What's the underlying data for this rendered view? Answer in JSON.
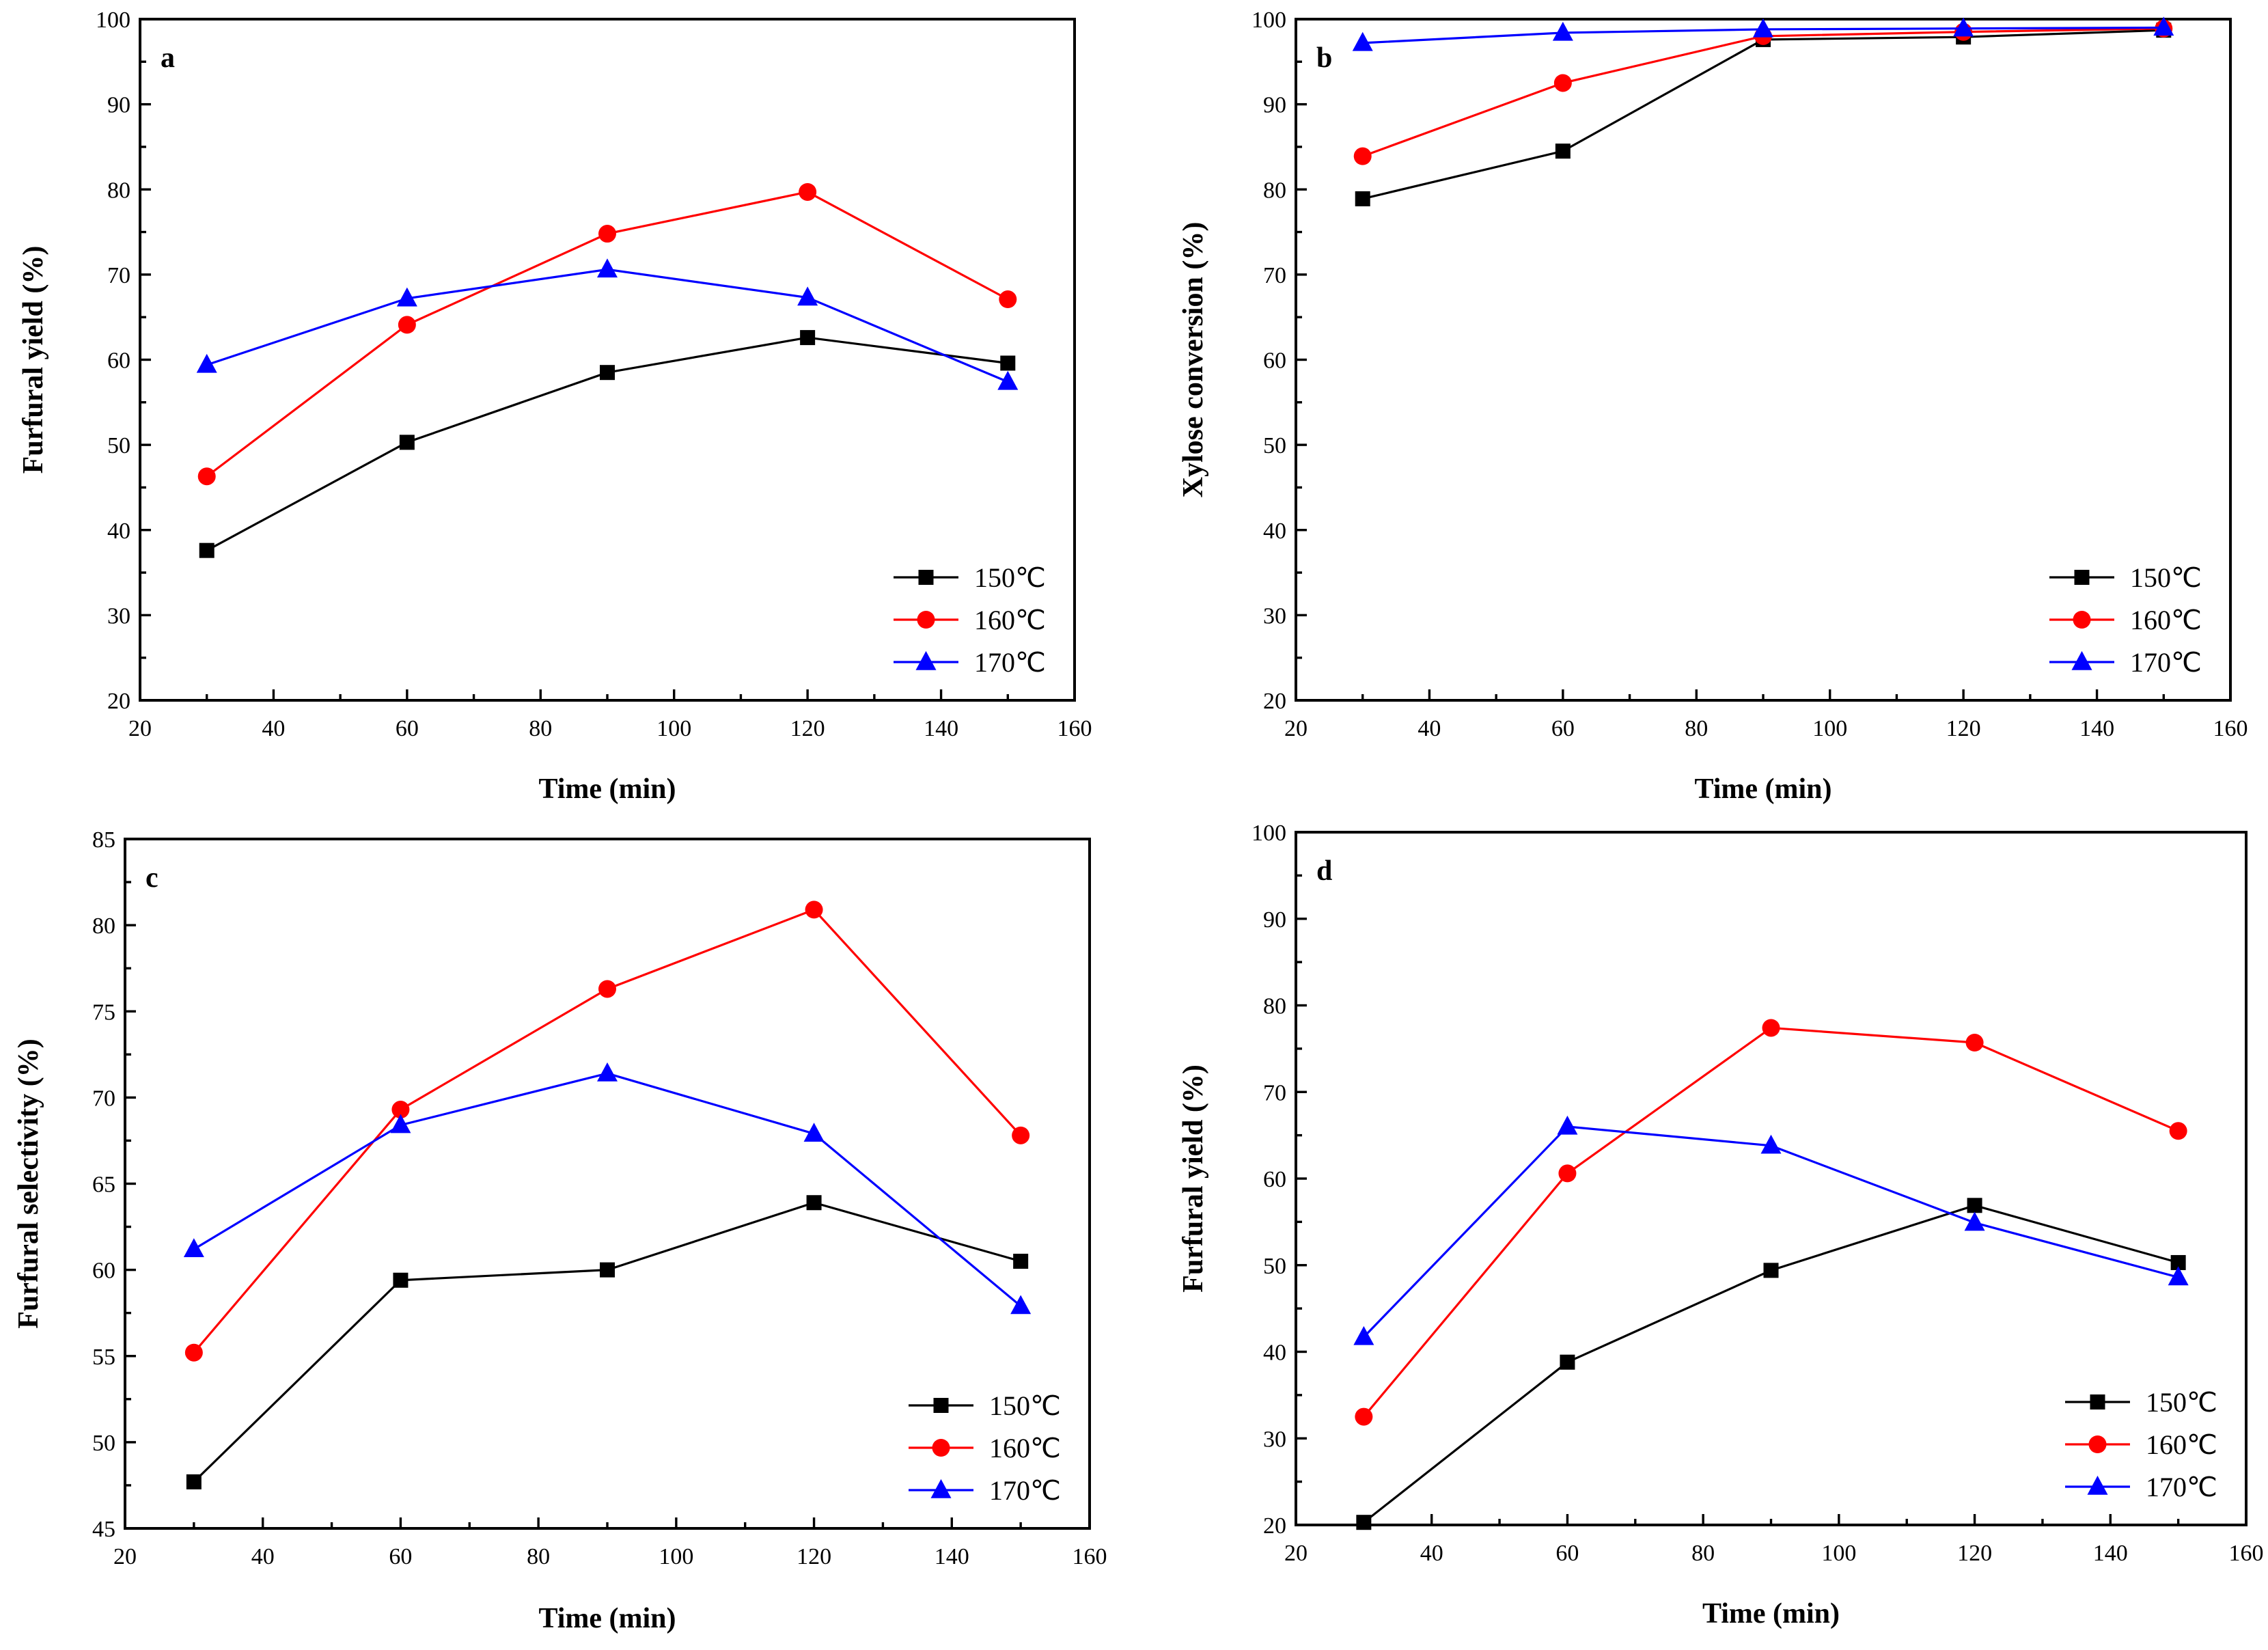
{
  "colors": {
    "150℃": "#000000",
    "160℃": "#ff0000",
    "170℃": "#0000ff"
  },
  "markers": {
    "150℃": "square",
    "160℃": "circle",
    "170℃": "triangle"
  },
  "chart_data": [
    {
      "panel": "a",
      "type": "line",
      "xlabel": "Time (min)",
      "ylabel": "Furfural yield (%)",
      "xlim": [
        20,
        160
      ],
      "ylim": [
        20,
        100
      ],
      "xticks": [
        20,
        40,
        60,
        80,
        100,
        120,
        140,
        160
      ],
      "yticks": [
        20,
        30,
        40,
        50,
        60,
        70,
        80,
        90,
        100
      ],
      "legend_position": "bottom-right",
      "x": [
        30,
        60,
        90,
        120,
        150
      ],
      "series": [
        {
          "name": "150℃",
          "values": [
            37.6,
            50.3,
            58.5,
            62.6,
            59.6
          ]
        },
        {
          "name": "160℃",
          "values": [
            46.3,
            64.1,
            74.8,
            79.7,
            67.1
          ]
        },
        {
          "name": "170℃",
          "values": [
            59.4,
            67.2,
            70.6,
            67.3,
            57.4
          ]
        }
      ]
    },
    {
      "panel": "b",
      "type": "line",
      "xlabel": "Time (min)",
      "ylabel": "Xylose conversion (%)",
      "xlim": [
        20,
        160
      ],
      "ylim": [
        20,
        100
      ],
      "xticks": [
        20,
        40,
        60,
        80,
        100,
        120,
        140,
        160
      ],
      "yticks": [
        20,
        30,
        40,
        50,
        60,
        70,
        80,
        90,
        100
      ],
      "legend_position": "bottom-right",
      "x": [
        30,
        60,
        90,
        120,
        150
      ],
      "series": [
        {
          "name": "150℃",
          "values": [
            78.9,
            84.5,
            97.6,
            97.9,
            98.7
          ]
        },
        {
          "name": "160℃",
          "values": [
            83.9,
            92.5,
            98.0,
            98.5,
            98.9
          ]
        },
        {
          "name": "170℃",
          "values": [
            97.2,
            98.4,
            98.8,
            98.9,
            99.0
          ]
        }
      ]
    },
    {
      "panel": "c",
      "type": "line",
      "xlabel": "Time (min)",
      "ylabel": "Furfural selectivity (%)",
      "xlim": [
        20,
        160
      ],
      "ylim": [
        45,
        85
      ],
      "xticks": [
        20,
        40,
        60,
        80,
        100,
        120,
        140,
        160
      ],
      "yticks": [
        45,
        50,
        55,
        60,
        65,
        70,
        75,
        80,
        85
      ],
      "legend_position": "bottom-right",
      "x": [
        30,
        60,
        90,
        120,
        150
      ],
      "series": [
        {
          "name": "150℃",
          "values": [
            47.7,
            59.4,
            60.0,
            63.9,
            60.5
          ]
        },
        {
          "name": "160℃",
          "values": [
            55.2,
            69.3,
            76.3,
            80.9,
            67.8
          ]
        },
        {
          "name": "170℃",
          "values": [
            61.2,
            68.4,
            71.4,
            67.9,
            57.9
          ]
        }
      ]
    },
    {
      "panel": "d",
      "type": "line",
      "xlabel": "Time (min)",
      "ylabel": "Furfural yield (%)",
      "xlim": [
        20,
        160
      ],
      "ylim": [
        20,
        100
      ],
      "xticks": [
        20,
        40,
        60,
        80,
        100,
        120,
        140,
        160
      ],
      "yticks": [
        20,
        30,
        40,
        50,
        60,
        70,
        80,
        90,
        100
      ],
      "legend_position": "bottom-right",
      "x": [
        30,
        60,
        90,
        120,
        150
      ],
      "series": [
        {
          "name": "150℃",
          "values": [
            20.3,
            38.8,
            49.4,
            56.9,
            50.3
          ]
        },
        {
          "name": "160℃",
          "values": [
            32.5,
            60.6,
            77.4,
            75.7,
            65.5
          ]
        },
        {
          "name": "170℃",
          "values": [
            41.7,
            66.0,
            63.8,
            54.9,
            48.6
          ]
        }
      ]
    }
  ]
}
